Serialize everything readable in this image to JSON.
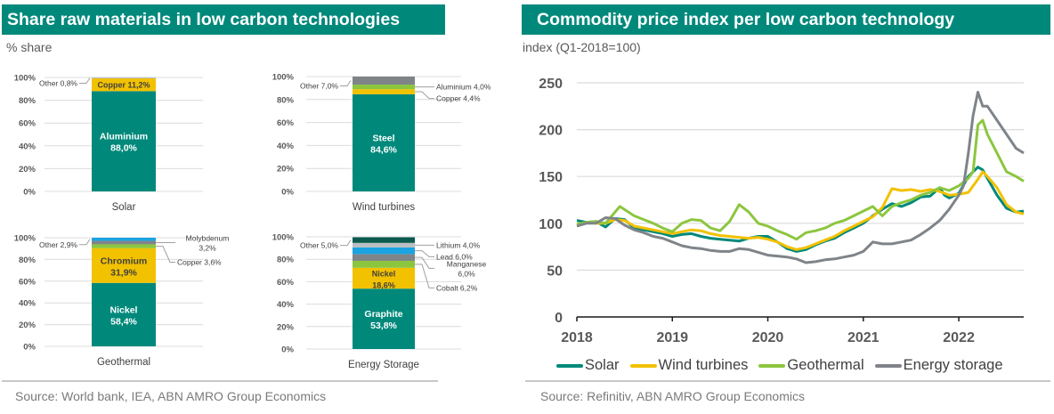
{
  "left_panel": {
    "title": "Share raw materials in low carbon technologies",
    "subtitle": "% share",
    "source": "Source: World bank, IEA, ABN AMRO Group Economics"
  },
  "right_panel": {
    "title": "Commodity price index per low carbon technology",
    "subtitle": "index (Q1-2018=100)",
    "source": "Source: Refinitiv, ABN AMRO Group Economics"
  },
  "colors": {
    "teal": "#00897b",
    "yellow": "#f2c100",
    "light_green": "#8cc63f",
    "grey": "#7f8489",
    "light_grey": "#b9bec2",
    "blue": "#1aa3e0",
    "dark_green": "#0b5a4e",
    "steel_blue": "#4a90c2"
  },
  "chart_data": [
    {
      "type": "bar",
      "stacked": true,
      "title": "Solar",
      "category": "Solar",
      "ylim": [
        0,
        100
      ],
      "yticks": [
        "0%",
        "20%",
        "40%",
        "60%",
        "80%",
        "100%"
      ],
      "segments": [
        {
          "name": "Aluminium",
          "value": 88.0,
          "label": "Aluminium",
          "value_label": "88,0%",
          "color": "#00897b",
          "inside": true
        },
        {
          "name": "Copper",
          "value": 11.2,
          "label": "Copper 11,2%",
          "color": "#f2c100",
          "inside": true
        },
        {
          "name": "Other",
          "value": 0.8,
          "label": "Other 0,8%",
          "color": "#b9bec2",
          "inside": false,
          "side": "left"
        }
      ]
    },
    {
      "type": "bar",
      "stacked": true,
      "title": "Wind turbines",
      "category": "Wind turbines",
      "ylim": [
        0,
        100
      ],
      "yticks": [
        "0%",
        "20%",
        "40%",
        "60%",
        "80%",
        "100%"
      ],
      "segments": [
        {
          "name": "Steel",
          "value": 84.6,
          "label": "Steel",
          "value_label": "84,6%",
          "color": "#00897b",
          "inside": true
        },
        {
          "name": "Copper",
          "value": 4.4,
          "label": "Copper 4,4%",
          "color": "#f2c100",
          "inside": false,
          "side": "right"
        },
        {
          "name": "Aluminium",
          "value": 4.0,
          "label": "Aluminium 4,0%",
          "color": "#8cc63f",
          "inside": false,
          "side": "right"
        },
        {
          "name": "Other",
          "value": 7.0,
          "label": "Other 7,0%",
          "color": "#7f8489",
          "inside": false,
          "side": "left"
        }
      ]
    },
    {
      "type": "bar",
      "stacked": true,
      "title": "Geothermal",
      "category": "Geothermal",
      "ylim": [
        0,
        100
      ],
      "yticks": [
        "0%",
        "20%",
        "40%",
        "60%",
        "80%",
        "100%"
      ],
      "segments": [
        {
          "name": "Nickel",
          "value": 58.4,
          "label": "Nickel",
          "value_label": "58,4%",
          "color": "#00897b",
          "inside": true
        },
        {
          "name": "Chromium",
          "value": 31.9,
          "label": "Chromium",
          "value_label": "31,9%",
          "color": "#f2c100",
          "inside": true
        },
        {
          "name": "Copper",
          "value": 3.6,
          "label": "Copper 3,6%",
          "color": "#8cc63f",
          "inside": false,
          "side": "right"
        },
        {
          "name": "Molybdenum",
          "value": 3.2,
          "label": "Molybdenum",
          "value_label": "3,2%",
          "color": "#7f8489",
          "inside": false,
          "side": "right"
        },
        {
          "name": "Other",
          "value": 2.9,
          "label": "Other 2,9%",
          "color": "#1aa3e0",
          "inside": false,
          "side": "left"
        }
      ]
    },
    {
      "type": "bar",
      "stacked": true,
      "title": "Energy Storage",
      "category": "Energy Storage",
      "ylim": [
        0,
        100
      ],
      "yticks": [
        "0%",
        "20%",
        "40%",
        "60%",
        "80%",
        "100%"
      ],
      "segments": [
        {
          "name": "Graphite",
          "value": 53.8,
          "label": "Graphite",
          "value_label": "53,8%",
          "color": "#00897b",
          "inside": true
        },
        {
          "name": "Nickel",
          "value": 18.6,
          "label": "Nickel",
          "value_label": "18,6%",
          "color": "#f2c100",
          "inside": true
        },
        {
          "name": "Cobalt",
          "value": 6.2,
          "label": "Cobalt 6,2%",
          "color": "#8cc63f",
          "inside": false,
          "side": "right"
        },
        {
          "name": "Manganese",
          "value": 6.0,
          "label": "Manganese",
          "value_label": "6,0%",
          "color": "#7f8489",
          "inside": false,
          "side": "right"
        },
        {
          "name": "Lead",
          "value": 6.0,
          "label": "Lead 6,0%",
          "color": "#1aa3e0",
          "inside": false,
          "side": "right"
        },
        {
          "name": "Lithium",
          "value": 4.0,
          "label": "Lithium 4,0%",
          "color": "#b9bec2",
          "inside": false,
          "side": "right"
        },
        {
          "name": "Other",
          "value": 5.0,
          "label": "Other 5,0%",
          "color": "#0b5a4e",
          "inside": false,
          "side": "left"
        }
      ]
    },
    {
      "type": "line",
      "title": "Commodity price index per low carbon technology",
      "ylabel": "index (Q1-2018=100)",
      "xlabel": "",
      "ylim": [
        0,
        250
      ],
      "xlim": [
        2018,
        2022.68
      ],
      "yticks": [
        0,
        50,
        100,
        150,
        200,
        250
      ],
      "xticks": [
        2018,
        2019,
        2020,
        2021,
        2022
      ],
      "grid": true,
      "legend": "bottom",
      "series": [
        {
          "name": "Solar",
          "color": "#00897b",
          "x": [
            2018.0,
            2018.1,
            2018.2,
            2018.3,
            2018.4,
            2018.5,
            2018.6,
            2018.7,
            2018.8,
            2018.9,
            2019.0,
            2019.1,
            2019.2,
            2019.3,
            2019.4,
            2019.5,
            2019.6,
            2019.7,
            2019.8,
            2019.9,
            2020.0,
            2020.1,
            2020.2,
            2020.3,
            2020.4,
            2020.5,
            2020.6,
            2020.7,
            2020.8,
            2020.9,
            2021.0,
            2021.1,
            2021.2,
            2021.3,
            2021.4,
            2021.5,
            2021.6,
            2021.7,
            2021.8,
            2021.85,
            2021.9,
            2022.0,
            2022.1,
            2022.2,
            2022.25,
            2022.3,
            2022.4,
            2022.5,
            2022.6,
            2022.68
          ],
          "y": [
            103,
            101,
            102,
            96,
            105,
            104,
            95,
            93,
            91,
            89,
            86,
            88,
            89,
            86,
            84,
            83,
            82,
            81,
            84,
            86,
            86,
            80,
            73,
            70,
            72,
            77,
            81,
            84,
            90,
            95,
            100,
            108,
            115,
            121,
            118,
            122,
            128,
            129,
            138,
            130,
            127,
            132,
            150,
            160,
            157,
            148,
            130,
            116,
            112,
            113
          ]
        },
        {
          "name": "Wind turbines",
          "color": "#f2c100",
          "x": [
            2018.0,
            2018.1,
            2018.2,
            2018.3,
            2018.4,
            2018.5,
            2018.6,
            2018.7,
            2018.8,
            2018.9,
            2019.0,
            2019.1,
            2019.2,
            2019.3,
            2019.4,
            2019.5,
            2019.6,
            2019.7,
            2019.8,
            2019.9,
            2020.0,
            2020.1,
            2020.2,
            2020.3,
            2020.4,
            2020.5,
            2020.6,
            2020.7,
            2020.8,
            2020.9,
            2021.0,
            2021.1,
            2021.2,
            2021.3,
            2021.4,
            2021.5,
            2021.6,
            2021.7,
            2021.8,
            2021.9,
            2022.0,
            2022.1,
            2022.2,
            2022.25,
            2022.3,
            2022.4,
            2022.5,
            2022.6,
            2022.68
          ],
          "y": [
            98,
            101,
            100,
            100,
            104,
            103,
            97,
            95,
            93,
            91,
            89,
            91,
            93,
            92,
            89,
            87,
            86,
            85,
            84,
            85,
            83,
            80,
            75,
            72,
            74,
            78,
            82,
            86,
            92,
            97,
            102,
            107,
            117,
            137,
            135,
            136,
            134,
            136,
            134,
            130,
            131,
            133,
            147,
            155,
            150,
            138,
            120,
            112,
            110
          ]
        },
        {
          "name": "Geothermal",
          "color": "#8cc63f",
          "x": [
            2018.0,
            2018.1,
            2018.2,
            2018.3,
            2018.4,
            2018.45,
            2018.6,
            2018.7,
            2018.8,
            2018.9,
            2019.0,
            2019.1,
            2019.2,
            2019.3,
            2019.4,
            2019.5,
            2019.6,
            2019.7,
            2019.8,
            2019.9,
            2020.0,
            2020.1,
            2020.2,
            2020.3,
            2020.4,
            2020.5,
            2020.6,
            2020.7,
            2020.8,
            2020.9,
            2021.0,
            2021.1,
            2021.2,
            2021.3,
            2021.4,
            2021.5,
            2021.6,
            2021.7,
            2021.8,
            2021.9,
            2022.0,
            2022.1,
            2022.15,
            2022.2,
            2022.25,
            2022.3,
            2022.35,
            2022.4,
            2022.5,
            2022.6,
            2022.68
          ],
          "y": [
            99,
            101,
            102,
            100,
            112,
            118,
            108,
            104,
            100,
            95,
            91,
            100,
            104,
            103,
            95,
            92,
            102,
            120,
            112,
            100,
            97,
            92,
            88,
            83,
            90,
            92,
            95,
            100,
            103,
            108,
            113,
            118,
            108,
            118,
            122,
            125,
            130,
            133,
            138,
            135,
            140,
            148,
            155,
            205,
            210,
            195,
            185,
            175,
            155,
            150,
            145
          ]
        },
        {
          "name": "Energy storage",
          "color": "#7f8489",
          "x": [
            2018.0,
            2018.1,
            2018.2,
            2018.3,
            2018.4,
            2018.5,
            2018.6,
            2018.7,
            2018.8,
            2018.9,
            2019.0,
            2019.1,
            2019.2,
            2019.3,
            2019.4,
            2019.5,
            2019.6,
            2019.7,
            2019.8,
            2019.9,
            2020.0,
            2020.1,
            2020.2,
            2020.3,
            2020.4,
            2020.5,
            2020.6,
            2020.7,
            2020.8,
            2020.9,
            2021.0,
            2021.1,
            2021.2,
            2021.3,
            2021.4,
            2021.5,
            2021.6,
            2021.7,
            2021.8,
            2021.9,
            2022.0,
            2022.05,
            2022.1,
            2022.15,
            2022.2,
            2022.25,
            2022.3,
            2022.4,
            2022.5,
            2022.6,
            2022.68
          ],
          "y": [
            97,
            100,
            100,
            106,
            105,
            98,
            93,
            90,
            86,
            84,
            80,
            76,
            74,
            73,
            71,
            70,
            70,
            73,
            72,
            69,
            66,
            65,
            64,
            62,
            58,
            59,
            61,
            62,
            64,
            66,
            70,
            80,
            78,
            78,
            80,
            82,
            88,
            95,
            103,
            115,
            130,
            140,
            175,
            215,
            240,
            225,
            225,
            210,
            195,
            180,
            175
          ]
        }
      ]
    }
  ]
}
